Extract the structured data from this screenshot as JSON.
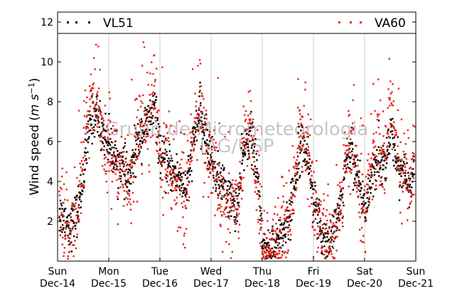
{
  "chart_data": {
    "type": "scatter",
    "title": "",
    "ylabel": "Wind speed",
    "ylabel_unit_base": "m s",
    "ylabel_unit_exp": "−1",
    "ylim": [
      0,
      12.5
    ],
    "y_ticks": [
      2,
      4,
      6,
      8,
      10,
      12
    ],
    "x_ticks": [
      {
        "day": "Sun",
        "date": "Dec-14"
      },
      {
        "day": "Mon",
        "date": "Dec-15"
      },
      {
        "day": "Tue",
        "date": "Dec-16"
      },
      {
        "day": "Wed",
        "date": "Dec-17"
      },
      {
        "day": "Thu",
        "date": "Dec-18"
      },
      {
        "day": "Fri",
        "date": "Dec-19"
      },
      {
        "day": "Sat",
        "date": "Dec-20"
      },
      {
        "day": "Sun",
        "date": "Dec-21"
      }
    ],
    "xlim_days": [
      0,
      7
    ],
    "grid": "vertical",
    "legend_placement": "top",
    "watermark": [
      "Grupo de Micrometeorologia",
      "IAG/USP"
    ],
    "series": [
      {
        "name": "VL51",
        "color": "#000000",
        "x_days": [
          0.0,
          0.12,
          0.25,
          0.38,
          0.5,
          0.62,
          0.75,
          0.88,
          1.0,
          1.12,
          1.25,
          1.38,
          1.5,
          1.62,
          1.75,
          1.88,
          2.0,
          2.12,
          2.25,
          2.38,
          2.5,
          2.62,
          2.75,
          2.88,
          3.0,
          3.12,
          3.25,
          3.38,
          3.5,
          3.62,
          3.75,
          3.88,
          4.0,
          4.12,
          4.25,
          4.38,
          4.5,
          4.62,
          4.75,
          4.88,
          5.0,
          5.12,
          5.25,
          5.38,
          5.5,
          5.62,
          5.75,
          5.88,
          6.0,
          6.12,
          6.25,
          6.38,
          6.5,
          6.62,
          6.75,
          6.88,
          7.0
        ],
        "values": [
          2.5,
          2.2,
          1.8,
          2.6,
          4.5,
          7.0,
          7.5,
          6.5,
          5.8,
          5.2,
          4.8,
          4.0,
          5.5,
          6.5,
          7.0,
          7.8,
          5.2,
          4.8,
          4.5,
          4.2,
          3.5,
          5.8,
          7.5,
          6.2,
          5.0,
          4.2,
          3.8,
          3.0,
          2.8,
          5.5,
          6.5,
          4.5,
          0.8,
          0.7,
          1.0,
          1.5,
          2.2,
          4.0,
          6.5,
          5.0,
          3.0,
          1.5,
          1.2,
          1.5,
          2.5,
          5.0,
          5.5,
          4.0,
          2.5,
          4.5,
          5.2,
          4.8,
          6.5,
          5.0,
          4.5,
          3.5,
          6.0
        ]
      },
      {
        "name": "VA60",
        "color": "#e8241a",
        "x_days": [
          0.0,
          0.12,
          0.25,
          0.38,
          0.5,
          0.62,
          0.75,
          0.88,
          1.0,
          1.12,
          1.25,
          1.38,
          1.5,
          1.62,
          1.75,
          1.88,
          2.0,
          2.12,
          2.25,
          2.38,
          2.5,
          2.62,
          2.75,
          2.88,
          3.0,
          3.12,
          3.25,
          3.38,
          3.5,
          3.62,
          3.75,
          3.88,
          4.0,
          4.12,
          4.25,
          4.38,
          4.5,
          4.62,
          4.75,
          4.88,
          5.0,
          5.12,
          5.25,
          5.38,
          5.5,
          5.62,
          5.75,
          5.88,
          6.0,
          6.12,
          6.25,
          6.38,
          6.5,
          6.62,
          6.75,
          6.88,
          7.0
        ],
        "values": [
          2.2,
          2.0,
          1.5,
          2.8,
          5.0,
          8.5,
          8.0,
          6.0,
          5.5,
          4.8,
          4.5,
          3.5,
          6.0,
          7.0,
          7.5,
          8.5,
          5.0,
          4.5,
          4.0,
          3.8,
          3.0,
          6.0,
          8.0,
          6.0,
          4.5,
          3.8,
          3.2,
          2.5,
          2.5,
          6.0,
          7.0,
          4.0,
          0.6,
          0.5,
          0.9,
          1.2,
          2.0,
          4.5,
          7.0,
          5.0,
          2.5,
          1.2,
          0.9,
          1.2,
          2.2,
          5.5,
          6.0,
          3.5,
          2.0,
          5.0,
          6.0,
          5.0,
          7.5,
          5.5,
          5.0,
          3.2,
          7.0
        ]
      }
    ]
  }
}
